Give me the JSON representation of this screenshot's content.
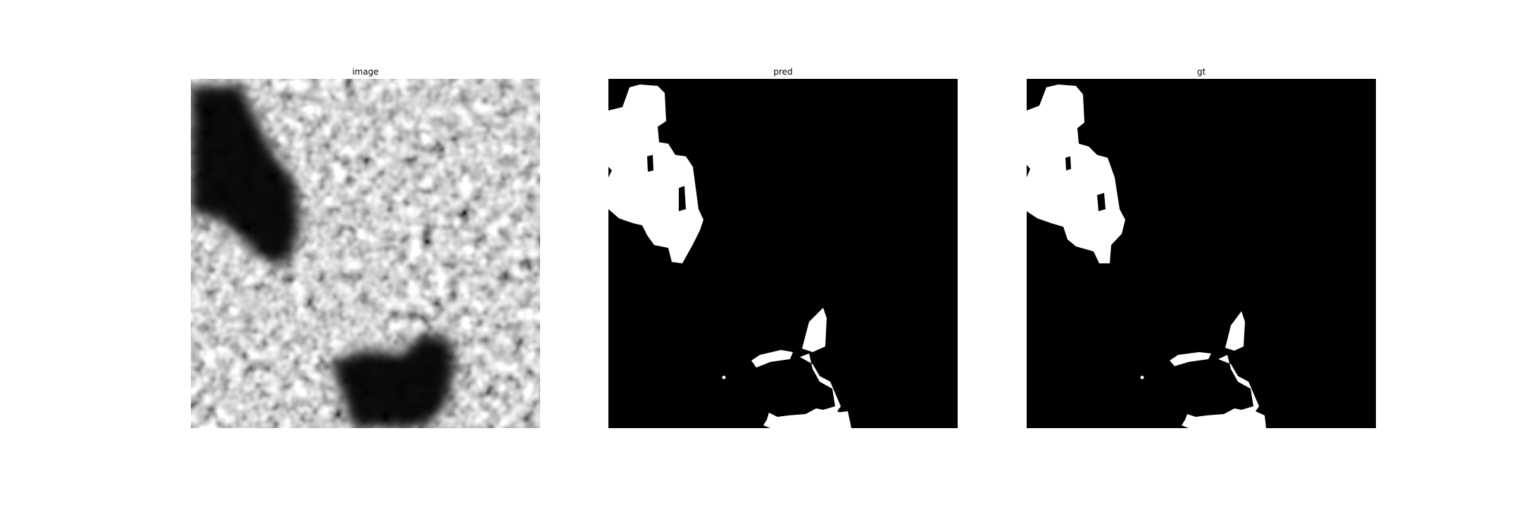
{
  "panels": [
    {
      "title": "image"
    },
    {
      "title": "pred"
    },
    {
      "title": "gt"
    }
  ],
  "colors": {
    "background": "#ffffff",
    "mask_foreground": "#ffffff",
    "mask_background": "#000000"
  }
}
